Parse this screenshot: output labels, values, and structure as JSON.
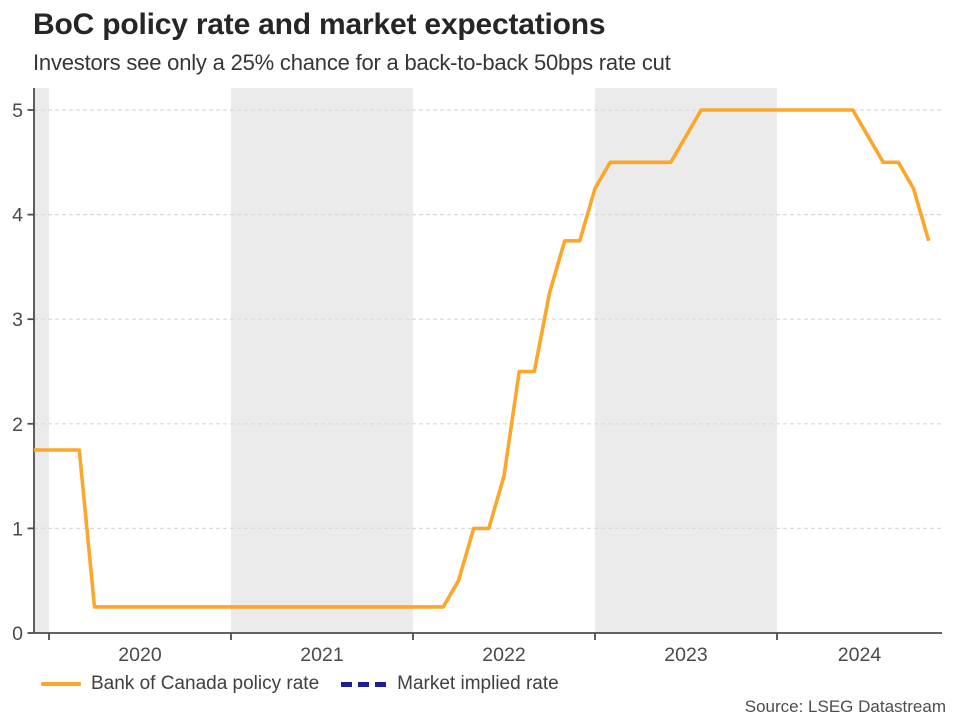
{
  "header": {
    "title": "BoC policy rate and market expectations",
    "subtitle": "Investors see only a 25% chance for a back-to-back 50bps rate cut"
  },
  "legend": {
    "items": [
      {
        "label": "Bank of Canada policy rate",
        "color": "#FAA72B",
        "style": "solid"
      },
      {
        "label": "Market implied rate",
        "color": "#1E1E99",
        "style": "dashed"
      }
    ]
  },
  "footer": {
    "source": "Source: LSEG Datastream"
  },
  "chart_data": {
    "type": "line",
    "title": "BoC policy rate and market expectations",
    "subtitle": "Investors see only a 25% chance for a back-to-back 50bps rate cut",
    "xlabel": "",
    "ylabel": "",
    "ylim": [
      0,
      5.2
    ],
    "yticks": [
      0,
      1,
      2,
      3,
      4,
      5
    ],
    "xtick_years": [
      2020,
      2021,
      2022,
      2023,
      2024
    ],
    "x_range": [
      "2019-11",
      "2024-11"
    ],
    "grid": "horizontal-dashed",
    "grid_color": "#D9D9D9",
    "axis_color": "#4D4D4D",
    "tick_label_color": "#4A4A4A",
    "band_color": "#EBEBEB",
    "shaded_year_bands": [
      2019,
      2021,
      2023
    ],
    "legend_position": "bottom-left",
    "source": "Source: LSEG Datastream",
    "series": [
      {
        "name": "Bank of Canada policy rate",
        "color": "#FAA72B",
        "style": "solid",
        "points": [
          [
            "2019-11",
            1.75
          ],
          [
            "2019-12",
            1.75
          ],
          [
            "2020-01",
            1.75
          ],
          [
            "2020-02",
            1.75
          ],
          [
            "2020-03",
            0.25
          ],
          [
            "2020-04",
            0.25
          ],
          [
            "2020-05",
            0.25
          ],
          [
            "2020-06",
            0.25
          ],
          [
            "2020-07",
            0.25
          ],
          [
            "2020-08",
            0.25
          ],
          [
            "2020-09",
            0.25
          ],
          [
            "2020-10",
            0.25
          ],
          [
            "2020-11",
            0.25
          ],
          [
            "2020-12",
            0.25
          ],
          [
            "2021-01",
            0.25
          ],
          [
            "2021-02",
            0.25
          ],
          [
            "2021-03",
            0.25
          ],
          [
            "2021-04",
            0.25
          ],
          [
            "2021-05",
            0.25
          ],
          [
            "2021-06",
            0.25
          ],
          [
            "2021-07",
            0.25
          ],
          [
            "2021-08",
            0.25
          ],
          [
            "2021-09",
            0.25
          ],
          [
            "2021-10",
            0.25
          ],
          [
            "2021-11",
            0.25
          ],
          [
            "2021-12",
            0.25
          ],
          [
            "2022-01",
            0.25
          ],
          [
            "2022-02",
            0.25
          ],
          [
            "2022-03",
            0.5
          ],
          [
            "2022-04",
            1.0
          ],
          [
            "2022-05",
            1.0
          ],
          [
            "2022-06",
            1.5
          ],
          [
            "2022-07",
            2.5
          ],
          [
            "2022-08",
            2.5
          ],
          [
            "2022-09",
            3.25
          ],
          [
            "2022-10",
            3.75
          ],
          [
            "2022-11",
            3.75
          ],
          [
            "2022-12",
            4.25
          ],
          [
            "2023-01",
            4.5
          ],
          [
            "2023-02",
            4.5
          ],
          [
            "2023-03",
            4.5
          ],
          [
            "2023-04",
            4.5
          ],
          [
            "2023-05",
            4.5
          ],
          [
            "2023-06",
            4.75
          ],
          [
            "2023-07",
            5.0
          ],
          [
            "2023-08",
            5.0
          ],
          [
            "2023-09",
            5.0
          ],
          [
            "2023-10",
            5.0
          ],
          [
            "2023-11",
            5.0
          ],
          [
            "2023-12",
            5.0
          ],
          [
            "2024-01",
            5.0
          ],
          [
            "2024-02",
            5.0
          ],
          [
            "2024-03",
            5.0
          ],
          [
            "2024-04",
            5.0
          ],
          [
            "2024-05",
            5.0
          ],
          [
            "2024-06",
            4.75
          ],
          [
            "2024-07",
            4.5
          ],
          [
            "2024-08",
            4.5
          ],
          [
            "2024-09",
            4.25
          ],
          [
            "2024-10",
            3.75
          ]
        ]
      },
      {
        "name": "Market implied rate",
        "color": "#1E1E99",
        "style": "dashed",
        "points": []
      }
    ]
  }
}
